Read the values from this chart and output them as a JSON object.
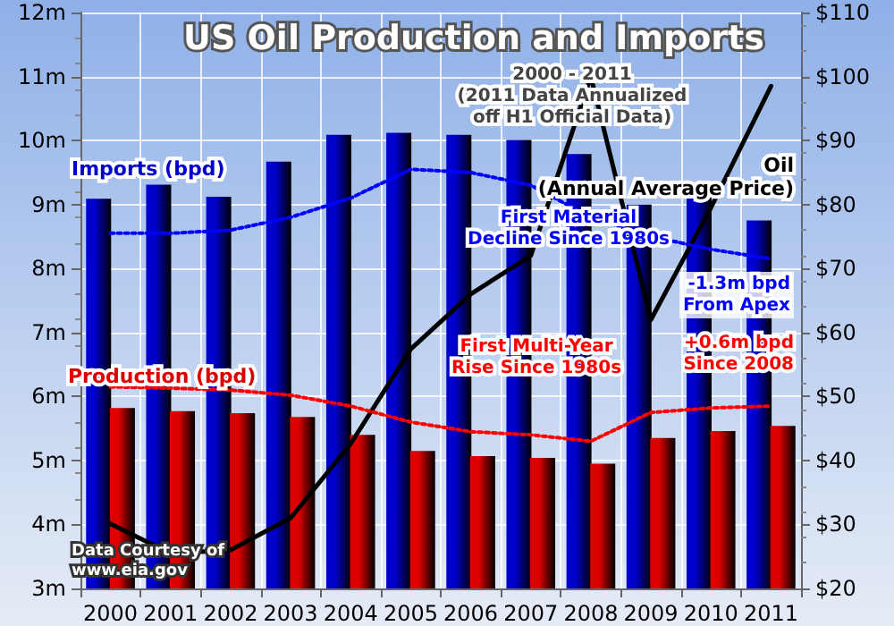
{
  "chart_data": {
    "type": "bar",
    "title": "US Oil Production and Imports",
    "subtitle": "2000 - 2011\n(2011 Data Annualized\noff H1 Official Data)",
    "categories": [
      "2000",
      "2001",
      "2002",
      "2003",
      "2004",
      "2005",
      "2006",
      "2007",
      "2008",
      "2009",
      "2010",
      "2011"
    ],
    "series": [
      {
        "name": "Imports (bpd)",
        "color": "#0000cc",
        "values": [
          9.09,
          9.31,
          9.12,
          9.67,
          10.09,
          10.12,
          10.09,
          10.01,
          9.79,
          9.0,
          9.12,
          8.75
        ]
      },
      {
        "name": "Production (bpd)",
        "color": "#dd0000",
        "values": [
          5.82,
          5.77,
          5.74,
          5.68,
          5.4,
          5.15,
          5.07,
          5.04,
          4.95,
          5.35,
          5.46,
          5.54
        ]
      },
      {
        "name": "Oil\n(Annual Average Price)",
        "type": "line",
        "axis": "y2",
        "color": "#000000",
        "values": [
          30.1,
          25.5,
          26,
          31,
          42.6,
          57.4,
          66,
          72,
          100,
          62,
          79.5,
          98.5
        ]
      },
      {
        "type": "line",
        "line_style": "dotted",
        "color": "#0000ff",
        "values": [
          8.55,
          8.55,
          8.6,
          8.8,
          9.1,
          9.55,
          9.5,
          9.3,
          8.8,
          8.5,
          8.3,
          8.15
        ]
      },
      {
        "type": "line",
        "line_style": "dotted",
        "color": "#ff0000",
        "values": [
          6.15,
          6.13,
          6.1,
          6.02,
          5.85,
          5.6,
          5.45,
          5.4,
          5.3,
          5.75,
          5.82,
          5.85
        ]
      }
    ],
    "ylim": [
      3,
      12
    ],
    "yticks": [
      {
        "value": 3,
        "label": "3m"
      },
      {
        "value": 4,
        "label": "4m"
      },
      {
        "value": 5,
        "label": "5m"
      },
      {
        "value": 6,
        "label": "6m"
      },
      {
        "value": 7,
        "label": "7m"
      },
      {
        "value": 8,
        "label": "8m"
      },
      {
        "value": 9,
        "label": "9m"
      },
      {
        "value": 10,
        "label": "10m"
      },
      {
        "value": 11,
        "label": "11m"
      },
      {
        "value": 12,
        "label": "12m"
      }
    ],
    "y2lim": [
      20,
      110
    ],
    "y2ticks": [
      {
        "value": 20,
        "label": "$20"
      },
      {
        "value": 30,
        "label": "$30"
      },
      {
        "value": 40,
        "label": "$40"
      },
      {
        "value": 50,
        "label": "$50"
      },
      {
        "value": 60,
        "label": "$60"
      },
      {
        "value": 70,
        "label": "$70"
      },
      {
        "value": 80,
        "label": "$80"
      },
      {
        "value": 90,
        "label": "$90"
      },
      {
        "value": 100,
        "label": "$100"
      },
      {
        "value": 110,
        "label": "$110"
      }
    ],
    "grid": true,
    "marker": "none",
    "annotations": [
      "First Material\nDecline Since 1980s",
      "-1.3m bpd\nFrom Apex",
      "First Multi-Year\nRise Since 1980s",
      "+0.6m bpd\nSince 2008",
      "Data Courtesy of\nwww.eia.gov"
    ]
  }
}
